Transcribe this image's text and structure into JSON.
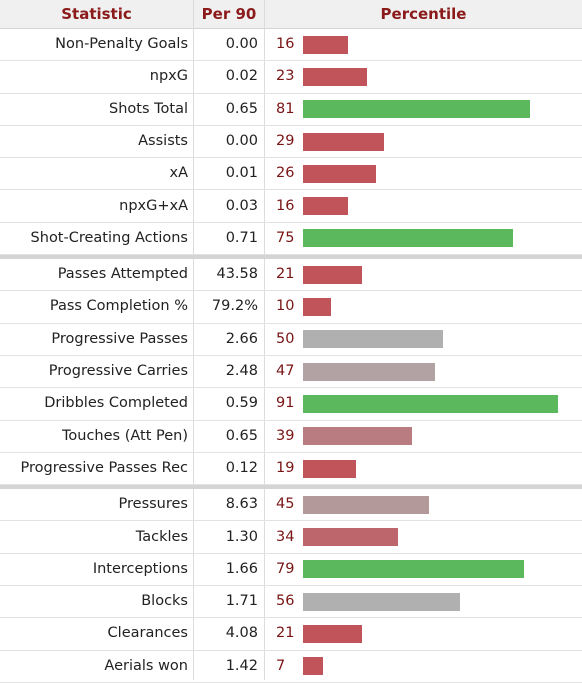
{
  "header": {
    "statistic": "Statistic",
    "per90": "Per 90",
    "percentile": "Percentile"
  },
  "colors": {
    "low": "#c0545a",
    "mid": "#b0b0b0",
    "high": "#5cb85c"
  },
  "chart_data": {
    "type": "bar",
    "xlim": [
      0,
      100
    ],
    "groups": [
      {
        "rows": [
          {
            "label": "Non-Penalty Goals",
            "per90": "0.00",
            "percentile": 16
          },
          {
            "label": "npxG",
            "per90": "0.02",
            "percentile": 23
          },
          {
            "label": "Shots Total",
            "per90": "0.65",
            "percentile": 81
          },
          {
            "label": "Assists",
            "per90": "0.00",
            "percentile": 29
          },
          {
            "label": "xA",
            "per90": "0.01",
            "percentile": 26
          },
          {
            "label": "npxG+xA",
            "per90": "0.03",
            "percentile": 16
          },
          {
            "label": "Shot-Creating Actions",
            "per90": "0.71",
            "percentile": 75
          }
        ]
      },
      {
        "rows": [
          {
            "label": "Passes Attempted",
            "per90": "43.58",
            "percentile": 21
          },
          {
            "label": "Pass Completion %",
            "per90": "79.2%",
            "percentile": 10
          },
          {
            "label": "Progressive Passes",
            "per90": "2.66",
            "percentile": 50
          },
          {
            "label": "Progressive Carries",
            "per90": "2.48",
            "percentile": 47
          },
          {
            "label": "Dribbles Completed",
            "per90": "0.59",
            "percentile": 91
          },
          {
            "label": "Touches (Att Pen)",
            "per90": "0.65",
            "percentile": 39
          },
          {
            "label": "Progressive Passes Rec",
            "per90": "0.12",
            "percentile": 19
          }
        ]
      },
      {
        "rows": [
          {
            "label": "Pressures",
            "per90": "8.63",
            "percentile": 45
          },
          {
            "label": "Tackles",
            "per90": "1.30",
            "percentile": 34
          },
          {
            "label": "Interceptions",
            "per90": "1.66",
            "percentile": 79
          },
          {
            "label": "Blocks",
            "per90": "1.71",
            "percentile": 56
          },
          {
            "label": "Clearances",
            "per90": "4.08",
            "percentile": 21
          },
          {
            "label": "Aerials won",
            "per90": "1.42",
            "percentile": 7
          }
        ]
      }
    ]
  }
}
